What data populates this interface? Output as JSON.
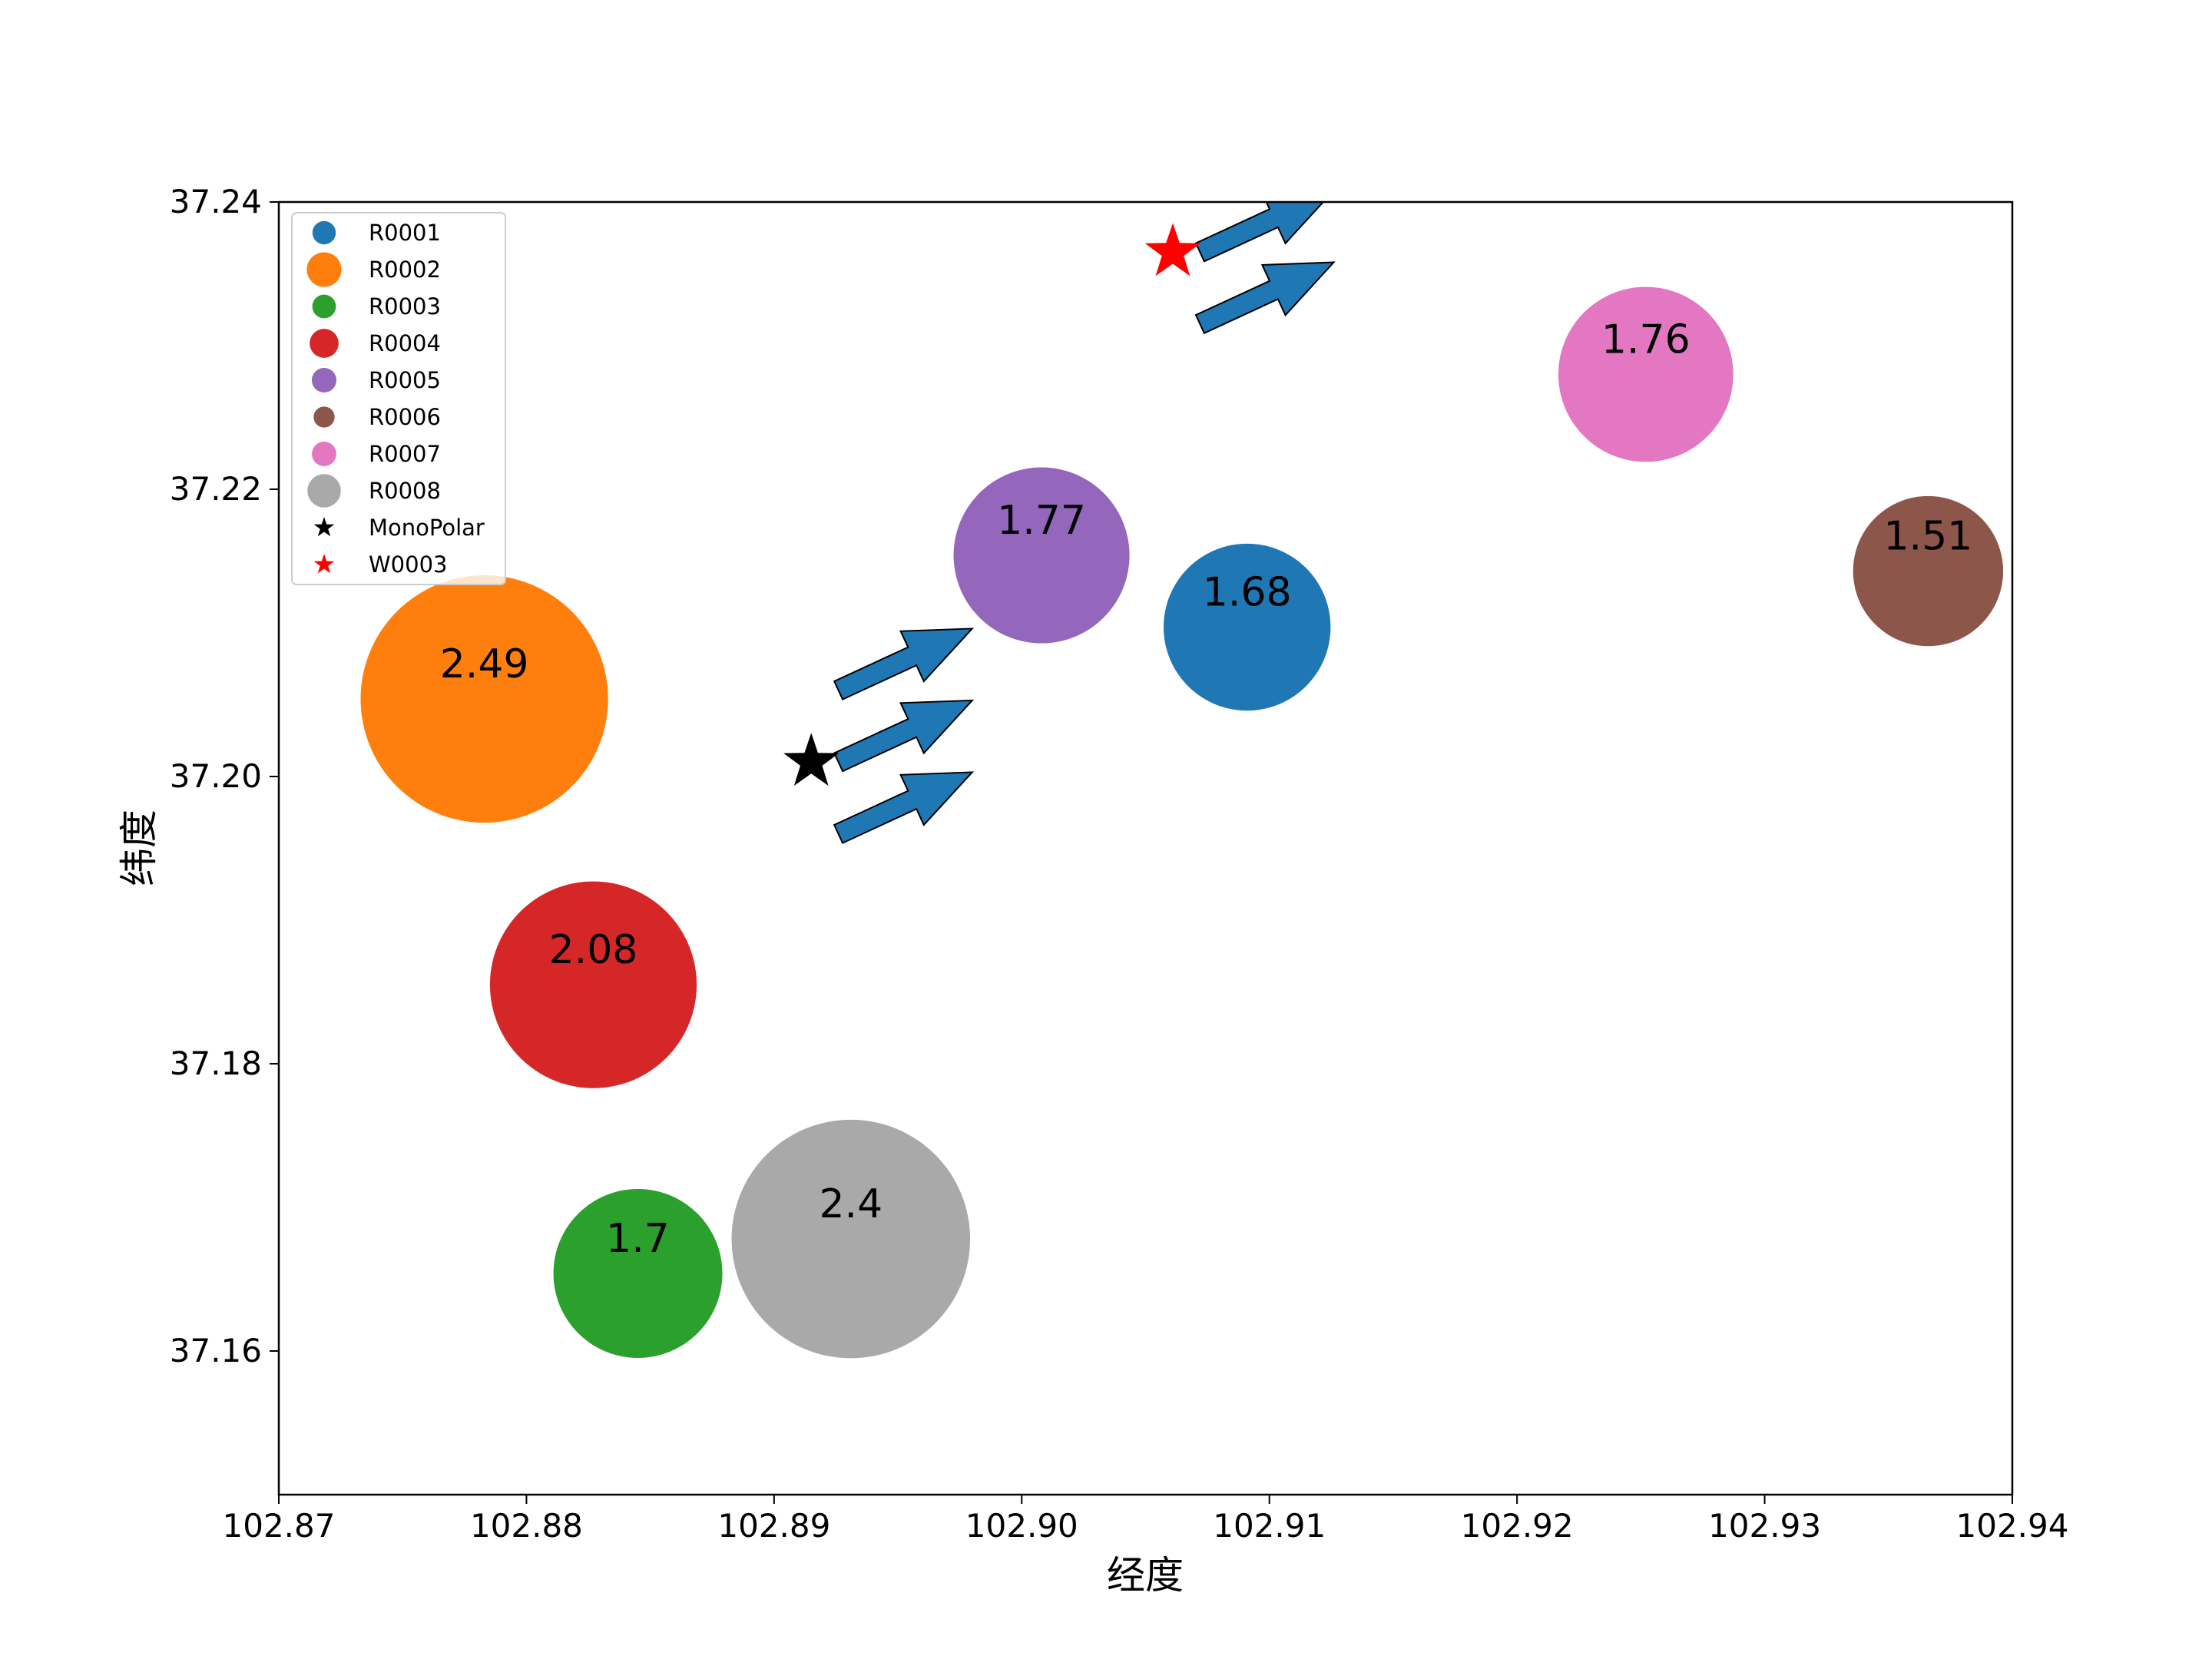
{
  "chart_data": {
    "type": "scatter",
    "title": "",
    "xlabel": "经度",
    "ylabel": "纬度",
    "xlim": [
      102.87,
      102.94
    ],
    "ylim": [
      37.15,
      37.24
    ],
    "xticks": [
      "102.87",
      "102.88",
      "102.89",
      "102.90",
      "102.91",
      "102.92",
      "102.93",
      "102.94"
    ],
    "yticks": [
      "37.16",
      "37.18",
      "37.20",
      "37.22",
      "37.24"
    ],
    "grid": false,
    "legend_position": "top-left",
    "bubbles": [
      {
        "name": "R0001",
        "x": 102.9091,
        "y": 37.2104,
        "value": 1.68,
        "label": "1.68",
        "color": "#1f77b4"
      },
      {
        "name": "R0002",
        "x": 102.8783,
        "y": 37.2054,
        "value": 2.49,
        "label": "2.49",
        "color": "#ff7f0e"
      },
      {
        "name": "R0003",
        "x": 102.8845,
        "y": 37.1654,
        "value": 1.7,
        "label": "1.7",
        "color": "#2ca02c"
      },
      {
        "name": "R0004",
        "x": 102.8827,
        "y": 37.1855,
        "value": 2.08,
        "label": "2.08",
        "color": "#d62728"
      },
      {
        "name": "R0005",
        "x": 102.9008,
        "y": 37.2154,
        "value": 1.77,
        "label": "1.77",
        "color": "#9467bd"
      },
      {
        "name": "R0006",
        "x": 102.9366,
        "y": 37.2143,
        "value": 1.51,
        "label": "1.51",
        "color": "#8c564b"
      },
      {
        "name": "R0007",
        "x": 102.9252,
        "y": 37.228,
        "value": 1.76,
        "label": "1.76",
        "color": "#e377c2"
      },
      {
        "name": "R0008",
        "x": 102.8931,
        "y": 37.1678,
        "value": 2.4,
        "label": "2.4",
        "color": "#a9a9a9"
      }
    ],
    "markers": [
      {
        "name": "MonoPolar",
        "x": 102.8915,
        "y": 37.201,
        "color": "#000000",
        "shape": "star"
      },
      {
        "name": "W0003",
        "x": 102.9061,
        "y": 37.2365,
        "color": "#ff0000",
        "shape": "star"
      }
    ],
    "arrows": [
      {
        "x": 102.8926,
        "y": 37.201,
        "dx": 0.0054,
        "dy": 0.0043,
        "color": "#1f77b4"
      },
      {
        "x": 102.8926,
        "y": 37.206,
        "dx": 0.0054,
        "dy": 0.0043,
        "color": "#1f77b4"
      },
      {
        "x": 102.8926,
        "y": 37.196,
        "dx": 0.0054,
        "dy": 0.0043,
        "color": "#1f77b4"
      },
      {
        "x": 102.9072,
        "y": 37.2365,
        "dx": 0.0054,
        "dy": 0.0043,
        "color": "#1f77b4"
      },
      {
        "x": 102.9072,
        "y": 37.2315,
        "dx": 0.0054,
        "dy": 0.0043,
        "color": "#1f77b4"
      }
    ]
  }
}
